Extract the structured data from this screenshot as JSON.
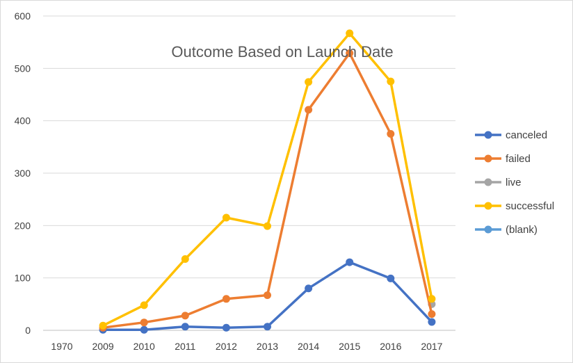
{
  "chart_data": {
    "type": "line",
    "title": "Outcome Based on Launch Date",
    "xlabel": "",
    "ylabel": "",
    "categories": [
      "1970",
      "2009",
      "2010",
      "2011",
      "2012",
      "2013",
      "2014",
      "2015",
      "2016",
      "2017"
    ],
    "ylim": [
      0,
      600
    ],
    "yticks": [
      0,
      100,
      200,
      300,
      400,
      500,
      600
    ],
    "grid": true,
    "legend_position": "right",
    "series": [
      {
        "name": "canceled",
        "color": "#4472c4",
        "values": [
          null,
          1,
          1,
          7,
          5,
          7,
          80,
          130,
          99,
          16
        ]
      },
      {
        "name": "failed",
        "color": "#ed7d31",
        "values": [
          null,
          5,
          15,
          28,
          60,
          67,
          421,
          529,
          375,
          31
        ]
      },
      {
        "name": "live",
        "color": "#a5a5a5",
        "values": [
          null,
          null,
          null,
          null,
          null,
          null,
          null,
          null,
          null,
          50
        ]
      },
      {
        "name": "successful",
        "color": "#ffc000",
        "values": [
          null,
          9,
          48,
          136,
          215,
          199,
          474,
          567,
          475,
          60
        ]
      },
      {
        "name": "(blank)",
        "color": "#5b9bd5",
        "values": [
          null,
          null,
          null,
          null,
          null,
          null,
          null,
          null,
          null,
          null
        ]
      }
    ]
  }
}
